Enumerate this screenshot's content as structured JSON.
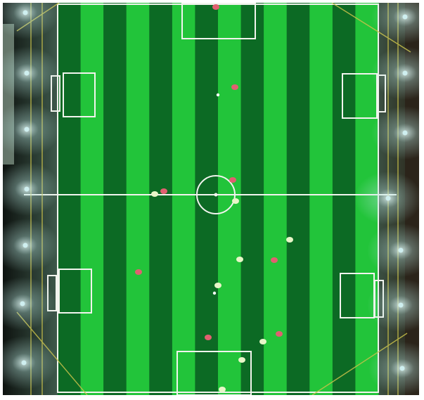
{
  "scene": {
    "subject": "soccer-pitch-aerial",
    "colors": {
      "stripe_light": "#22c43a",
      "stripe_dark": "#0c6a24",
      "line": "#f2f4ee",
      "surround": "#1b2420",
      "floodlight": "#cfeff0",
      "team_red": "#e06070",
      "team_white": "#e8f6c8"
    }
  }
}
